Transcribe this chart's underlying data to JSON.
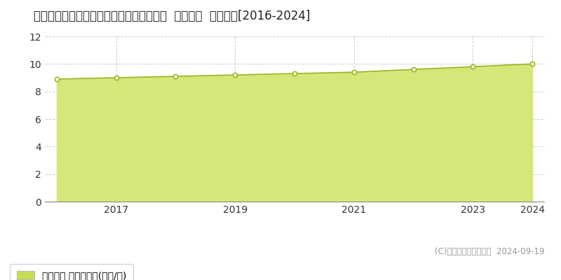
{
  "title": "福岡県筑後市大字蔵数字大谷５００番３８  基準地価  地価推移[2016-2024]",
  "years": [
    2016,
    2017,
    2018,
    2019,
    2020,
    2021,
    2022,
    2023,
    2024
  ],
  "values": [
    8.9,
    9.0,
    9.1,
    9.2,
    9.3,
    9.4,
    9.6,
    9.8,
    10.0
  ],
  "line_color": "#9ab520",
  "fill_color": "#d4e87a",
  "fill_alpha": 1.0,
  "marker_color": "white",
  "marker_edge_color": "#9ab520",
  "ylim": [
    0,
    12
  ],
  "yticks": [
    0,
    2,
    4,
    6,
    8,
    10,
    12
  ],
  "xticks": [
    2017,
    2019,
    2021,
    2023,
    2024
  ],
  "grid_color": "#cccccc",
  "bg_color": "#ffffff",
  "legend_label": "基準地価 平均嵊単価(万円/嵊)",
  "legend_marker_color": "#c8dc50",
  "copyright_text": "(C)土地価格ドットコム  2024-09-19",
  "title_fontsize": 12,
  "tick_fontsize": 10,
  "legend_fontsize": 10,
  "copyright_fontsize": 8.5
}
